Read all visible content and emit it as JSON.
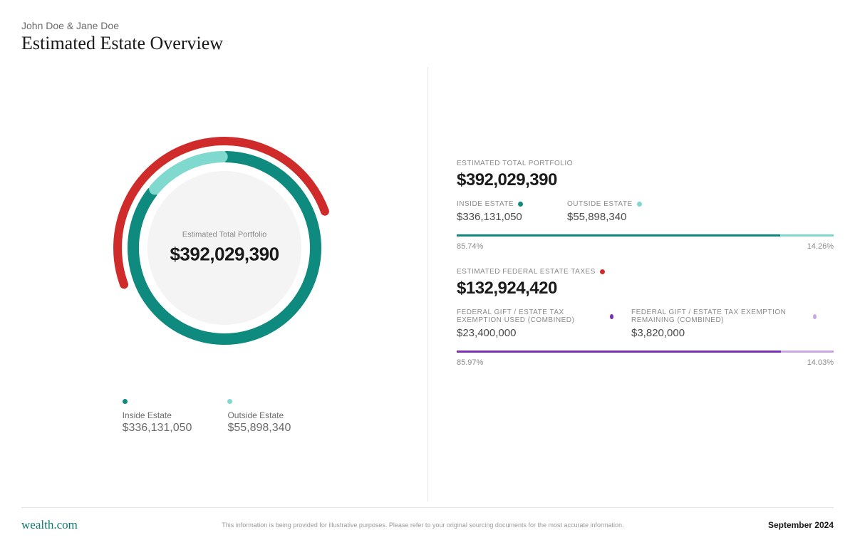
{
  "header": {
    "subtitle": "John Doe & Jane Doe",
    "title": "Estimated Estate Overview"
  },
  "colors": {
    "teal_dark": "#0f8a7e",
    "teal_light": "#7fd9cf",
    "red": "#d02b2b",
    "purple_dark": "#7b2fb5",
    "purple_light": "#c9a6e4",
    "inner_fill": "#f4f4f4",
    "text_muted": "#8a8a8a"
  },
  "donut": {
    "center_label": "Estimated Total Portfolio",
    "center_value": "$392,029,390",
    "inner_ring": {
      "gap_deg": 3,
      "stroke_width": 16,
      "radius": 128,
      "segments": [
        {
          "name": "Inside Estate",
          "pct": 85.74,
          "color": "#0f8a7e"
        },
        {
          "name": "Outside Estate",
          "pct": 14.26,
          "color": "#7fd9cf"
        }
      ]
    },
    "outer_ring": {
      "stroke_width": 12,
      "radius": 150,
      "start_deg": -110,
      "sweep_deg": 180,
      "color": "#d02b2b",
      "name": "Estimated Federal Estate Taxes"
    },
    "inner_circle_radius": 108,
    "inner_circle_fill": "#f4f4f4"
  },
  "legend": {
    "items": [
      {
        "dot_color": "#0f8a7e",
        "name": "Inside Estate",
        "amount": "$336,131,050"
      },
      {
        "dot_color": "#7fd9cf",
        "name": "Outside Estate",
        "amount": "$55,898,340"
      }
    ]
  },
  "right": {
    "portfolio": {
      "label": "ESTIMATED TOTAL PORTFOLIO",
      "value": "$392,029,390"
    },
    "estate_split": {
      "inside": {
        "label": "INSIDE ESTATE",
        "dot_color": "#0f8a7e",
        "value": "$336,131,050"
      },
      "outside": {
        "label": "OUTSIDE ESTATE",
        "dot_color": "#7fd9cf",
        "value": "$55,898,340"
      },
      "bar": {
        "segments": [
          {
            "pct": 85.74,
            "color": "#0f8a7e"
          },
          {
            "pct": 14.26,
            "color": "#7fd9cf"
          }
        ],
        "left_label": "85.74%",
        "right_label": "14.26%"
      }
    },
    "taxes": {
      "label": "ESTIMATED FEDERAL ESTATE TAXES",
      "dot_color": "#d02b2b",
      "value": "$132,924,420"
    },
    "exemption": {
      "used": {
        "label": "FEDERAL GIFT / ESTATE TAX EXEMPTION USED (COMBINED)",
        "dot_color": "#7b2fb5",
        "value": "$23,400,000"
      },
      "remaining": {
        "label": "FEDERAL GIFT / ESTATE TAX EXEMPTION REMAINING (COMBINED)",
        "dot_color": "#c9a6e4",
        "value": "$3,820,000"
      },
      "bar": {
        "segments": [
          {
            "pct": 85.97,
            "color": "#7b2fb5"
          },
          {
            "pct": 14.03,
            "color": "#c9a6e4"
          }
        ],
        "left_label": "85.97%",
        "right_label": "14.03%"
      }
    }
  },
  "footer": {
    "brand": "wealth.com",
    "disclaimer": "This information is being provided for illustrative purposes. Please refer to your original sourcing documents for the most accurate information.",
    "date": "September 2024"
  }
}
